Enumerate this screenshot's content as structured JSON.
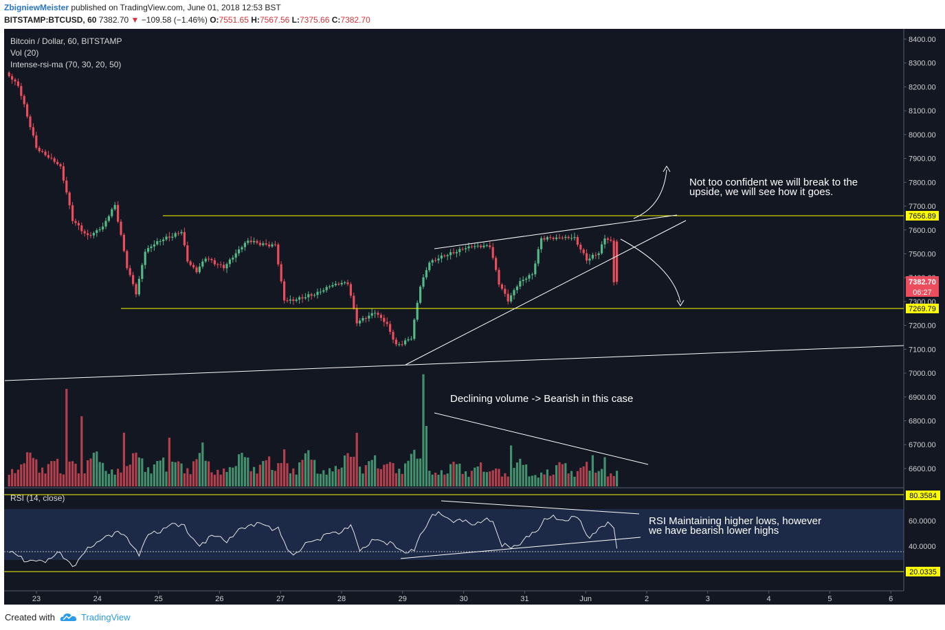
{
  "header": {
    "author": "ZbigniewMeister",
    "published_text": "published on TradingView.com, June 01, 2018 12:53 BST",
    "symbol": "BITSTAMP:BTCUSD, 60",
    "price": "7382.70",
    "change": "−109.58 (−1.46%)",
    "o_label": "O:",
    "o_value": "7551.65",
    "h_label": "H:",
    "h_value": "7567.56",
    "l_label": "L:",
    "l_value": "7375.66",
    "c_label": "C:",
    "c_value": "7382.70"
  },
  "legend": {
    "title": "Bitcoin / Dollar, 60, BITSTAMP",
    "vol": "Vol (20)",
    "indicator": "Intense-rsi-ma (70, 30, 20, 50)",
    "rsi": "RSI (14, close)"
  },
  "price_axis": {
    "ticks": [
      "8400.00",
      "8300.00",
      "8200.00",
      "8100.00",
      "8000.00",
      "7900.00",
      "7800.00",
      "7700.00",
      "7600.00",
      "7500.00",
      "7400.00",
      "7300.00",
      "7200.00",
      "7100.00",
      "7000.00",
      "6900.00",
      "6800.00",
      "6700.00",
      "6600.00"
    ],
    "badge_high": "7656.89",
    "badge_price": "7382.70",
    "badge_countdown": "06:27",
    "badge_low": "7269.79"
  },
  "rsi_axis": {
    "ticks": [
      "60.0000",
      "40.0000"
    ],
    "badge_high": "80.3584",
    "badge_low": "20.0335"
  },
  "time_axis": [
    "23",
    "24",
    "25",
    "26",
    "27",
    "28",
    "29",
    "30",
    "31",
    "Jun",
    "2",
    "3",
    "4",
    "5",
    "6"
  ],
  "annotations": {
    "top_1": "Not too confident we will break to the",
    "top_2": "upside, we will see how it goes.",
    "volume": "Declining volume -> Bearish in this case",
    "rsi_1": "RSI Maintaining  higher lows, however",
    "rsi_2": "we have bearish lower highs"
  },
  "footer": {
    "created": "Created with",
    "brand": "TradingView"
  },
  "colors": {
    "background": "#131722",
    "up": "#53b987",
    "down": "#eb4d5c",
    "level": "#ffff00",
    "rsi_band": "#1c2a48"
  },
  "chart_data": {
    "type": "candlestick",
    "title": "Bitcoin / Dollar, 60, BITSTAMP",
    "ylim": [
      6550,
      8450
    ],
    "levels": [
      7656.89,
      7269.79
    ],
    "last_price": 7382.7,
    "close_anchors": [
      [
        0,
        8260
      ],
      [
        4,
        8200
      ],
      [
        10,
        7950
      ],
      [
        15,
        7900
      ],
      [
        18,
        7860
      ],
      [
        22,
        7640
      ],
      [
        27,
        7580
      ],
      [
        32,
        7610
      ],
      [
        36,
        7700
      ],
      [
        40,
        7450
      ],
      [
        43,
        7340
      ],
      [
        46,
        7510
      ],
      [
        52,
        7560
      ],
      [
        58,
        7600
      ],
      [
        60,
        7470
      ],
      [
        63,
        7420
      ],
      [
        66,
        7480
      ],
      [
        72,
        7450
      ],
      [
        80,
        7550
      ],
      [
        89,
        7540
      ],
      [
        92,
        7300
      ],
      [
        95,
        7300
      ],
      [
        100,
        7330
      ],
      [
        103,
        7340
      ],
      [
        107,
        7360
      ],
      [
        113,
        7380
      ],
      [
        116,
        7220
      ],
      [
        122,
        7250
      ],
      [
        126,
        7200
      ],
      [
        129,
        7120
      ],
      [
        134,
        7150
      ],
      [
        137,
        7360
      ],
      [
        140,
        7460
      ],
      [
        145,
        7500
      ],
      [
        152,
        7520
      ],
      [
        160,
        7540
      ],
      [
        163,
        7380
      ],
      [
        166,
        7300
      ],
      [
        170,
        7380
      ],
      [
        174,
        7420
      ],
      [
        177,
        7570
      ],
      [
        182,
        7560
      ],
      [
        188,
        7570
      ],
      [
        192,
        7480
      ],
      [
        196,
        7500
      ],
      [
        198,
        7560
      ],
      [
        200,
        7550
      ],
      [
        201,
        7383
      ]
    ],
    "rsi_anchors": [
      [
        0,
        35
      ],
      [
        5,
        30
      ],
      [
        10,
        27
      ],
      [
        16,
        34
      ],
      [
        22,
        25
      ],
      [
        27,
        41
      ],
      [
        32,
        46
      ],
      [
        36,
        53
      ],
      [
        40,
        42
      ],
      [
        43,
        35
      ],
      [
        46,
        48
      ],
      [
        52,
        55
      ],
      [
        58,
        58
      ],
      [
        60,
        46
      ],
      [
        63,
        40
      ],
      [
        66,
        48
      ],
      [
        72,
        45
      ],
      [
        80,
        58
      ],
      [
        89,
        54
      ],
      [
        92,
        36
      ],
      [
        95,
        35
      ],
      [
        100,
        44
      ],
      [
        103,
        47
      ],
      [
        107,
        50
      ],
      [
        113,
        55
      ],
      [
        116,
        38
      ],
      [
        122,
        45
      ],
      [
        126,
        43
      ],
      [
        129,
        36
      ],
      [
        134,
        37
      ],
      [
        137,
        52
      ],
      [
        140,
        66
      ],
      [
        145,
        62
      ],
      [
        152,
        58
      ],
      [
        160,
        60
      ],
      [
        163,
        41
      ],
      [
        166,
        38
      ],
      [
        170,
        45
      ],
      [
        174,
        50
      ],
      [
        177,
        62
      ],
      [
        182,
        61
      ],
      [
        188,
        62
      ],
      [
        192,
        47
      ],
      [
        196,
        54
      ],
      [
        198,
        60
      ],
      [
        200,
        55
      ],
      [
        201,
        38
      ]
    ],
    "volume_spikes": [
      [
        19,
        1.0
      ],
      [
        24,
        0.72
      ],
      [
        38,
        0.55
      ],
      [
        53,
        0.5
      ],
      [
        64,
        0.45
      ],
      [
        91,
        0.38
      ],
      [
        115,
        0.55
      ],
      [
        137,
        1.15
      ],
      [
        138,
        0.62
      ],
      [
        166,
        0.42
      ],
      [
        193,
        0.32
      ],
      [
        197,
        0.3
      ]
    ]
  }
}
